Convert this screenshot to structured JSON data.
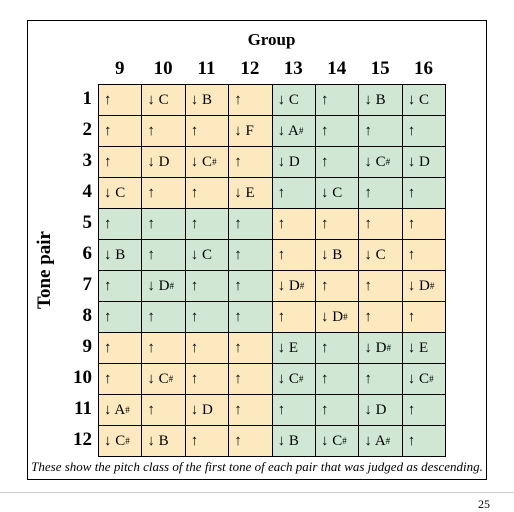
{
  "header": {
    "title": "Group",
    "columns": [
      "9",
      "10",
      "11",
      "12",
      "13",
      "14",
      "15",
      "16"
    ]
  },
  "row_label": "Tone pair",
  "rows": [
    {
      "label": "1",
      "cells": [
        "↑",
        "↓ C",
        "↓ B",
        "↑",
        "↓ C",
        "↑",
        "↓ B",
        "↓ C"
      ]
    },
    {
      "label": "2",
      "cells": [
        "↑",
        "↑",
        "↑",
        "↓ F",
        "↓ A#",
        "↑",
        "↑",
        "↑"
      ]
    },
    {
      "label": "3",
      "cells": [
        "↑",
        "↓ D",
        "↓ C#",
        "↑",
        "↓ D",
        "↑",
        "↓ C#",
        "↓ D"
      ]
    },
    {
      "label": "4",
      "cells": [
        "↓ C",
        "↑",
        "↑",
        "↓ E",
        "↑",
        "↓ C",
        "↑",
        "↑"
      ]
    },
    {
      "label": "5",
      "cells": [
        "↑",
        "↑",
        "↑",
        "↑",
        "↑",
        "↑",
        "↑",
        "↑"
      ]
    },
    {
      "label": "6",
      "cells": [
        "↓ B",
        "↑",
        "↓ C",
        "↑",
        "↑",
        "↓ B",
        "↓ C",
        "↑"
      ]
    },
    {
      "label": "7",
      "cells": [
        "↑",
        "↓ D#",
        "↑",
        "↑",
        "↓ D#",
        "↑",
        "↑",
        "↓ D#"
      ]
    },
    {
      "label": "8",
      "cells": [
        "↑",
        "↑",
        "↑",
        "↑",
        "↑",
        "↓ D#",
        "↑",
        "↑"
      ]
    },
    {
      "label": "9",
      "cells": [
        "↑",
        "↑",
        "↑",
        "↑",
        "↓ E",
        "↑",
        "↓ D#",
        "↓ E"
      ]
    },
    {
      "label": "10",
      "cells": [
        "↑",
        "↓ C#",
        "↑",
        "↑",
        "↓ C#",
        "↑",
        "↑",
        "↓ C#"
      ]
    },
    {
      "label": "11",
      "cells": [
        "↓ A#",
        "↑",
        "↓ D",
        "↑",
        "↑",
        "↑",
        "↓ D",
        "↑"
      ]
    },
    {
      "label": "12",
      "cells": [
        "↓ C#",
        "↓ B",
        "↑",
        "↑",
        "↓ B",
        "↓ C#",
        "↓ A#",
        "↑"
      ]
    }
  ],
  "caption": "These show the pitch class of the first tone of each pair that was judged as descending.",
  "page_number": "25"
}
